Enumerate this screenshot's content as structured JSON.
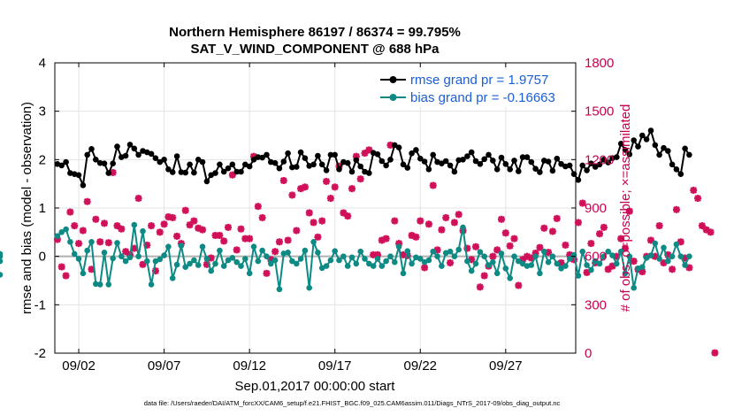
{
  "chart_data": {
    "type": "line",
    "title_lines": [
      "Northern Hemisphere 86197 / 86374 = 99.795%",
      "SAT_V_WIND_COMPONENT @ 688 hPa"
    ],
    "xlabel": "Sep.01,2017 00:00:00 start",
    "ylabel": "rmse and bias (model - observation)",
    "ylabel_right": "# of obs: o=possible; ×=assimilated",
    "footnote": "data file: /Users/raeder/DAI/ATM_forcXX/CAM6_setup/f.e21.FHIST_BGC.f09_025.CAM6assim.011/Diags_NTrS_2017-09/obs_diag_output.nc",
    "xlim": [
      0.6,
      31.1
    ],
    "x_ticks": [
      {
        "value": 2,
        "label": "09/02"
      },
      {
        "value": 7,
        "label": "09/07"
      },
      {
        "value": 12,
        "label": "09/12"
      },
      {
        "value": 17,
        "label": "09/17"
      },
      {
        "value": 22,
        "label": "09/22"
      },
      {
        "value": 27,
        "label": "09/27"
      }
    ],
    "ylim": [
      -2,
      4
    ],
    "y_ticks": [
      "-2",
      "-1",
      "0",
      "1",
      "2",
      "3",
      "4"
    ],
    "y_ticks_values": [
      -2,
      -1,
      0,
      1,
      2,
      3,
      4
    ],
    "ylim_right": [
      0,
      1800
    ],
    "y_ticks_right": [
      "0",
      "300",
      "600",
      "900",
      "1200",
      "1500",
      "1800"
    ],
    "y_ticks_right_values": [
      0,
      300,
      600,
      900,
      1200,
      1500,
      1800
    ],
    "x_start": 0.75,
    "x_step": 0.25,
    "colors": {
      "rmse": "#000000",
      "bias": "#0d8a84",
      "obs": "#d1105a",
      "zero_line": "#b0b0b0",
      "legend_text": "#1a5fd6",
      "right_axis": "#c8004f"
    },
    "legend": [
      {
        "key": "rmse",
        "label": "rmse grand pr = 1.9757"
      },
      {
        "key": "bias",
        "label": "bias grand pr = -0.16663"
      }
    ],
    "series": [
      {
        "name": "rmse",
        "values": [
          1.91,
          1.88,
          1.95,
          1.72,
          1.7,
          1.68,
          1.47,
          2.1,
          2.22,
          2.0,
          1.93,
          1.92,
          1.72,
          1.92,
          2.27,
          2.05,
          2.08,
          2.31,
          2.23,
          2.1,
          2.18,
          2.15,
          2.12,
          2.03,
          1.95,
          2.0,
          1.8,
          1.74,
          2.07,
          1.74,
          1.73,
          1.9,
          1.73,
          2.0,
          1.95,
          1.55,
          1.68,
          1.72,
          1.9,
          1.75,
          1.82,
          1.9,
          1.75,
          1.75,
          1.9,
          1.86,
          2.0,
          2.05,
          2.04,
          2.1,
          1.95,
          1.93,
          1.82,
          1.96,
          2.13,
          1.84,
          1.85,
          2.15,
          2.03,
          1.87,
          1.9,
          2.08,
          1.9,
          1.78,
          2.1,
          2.1,
          1.8,
          1.95,
          1.93,
          1.75,
          1.99,
          1.86,
          1.75,
          1.72,
          2.14,
          2.11,
          1.97,
          1.88,
          2.0,
          2.3,
          2.25,
          1.9,
          1.83,
          2.13,
          2.2,
          2.02,
          1.96,
          1.8,
          2.1,
          1.95,
          1.92,
          1.97,
          1.88,
          1.75,
          1.99,
          2.0,
          2.07,
          2.15,
          1.97,
          1.91,
          2.01,
          2.1,
          1.98,
          1.8,
          2.04,
          1.91,
          1.8,
          1.98,
          1.76,
          2.05,
          2.05,
          1.95,
          1.81,
          1.74,
          1.98,
          1.96,
          1.77,
          2.02,
          1.91,
          1.86,
          1.88,
          1.7,
          1.58,
          1.88,
          1.78,
          1.92,
          1.85,
          1.9,
          2.0,
          1.94,
          2.03,
          2.05,
          2.33,
          2.2,
          2.11,
          2.4,
          2.27,
          2.5,
          2.42,
          2.6,
          2.3,
          2.1,
          2.24,
          2.18,
          1.9,
          1.8,
          1.7,
          2.23,
          2.1
        ]
      },
      {
        "name": "bias",
        "values": [
          0.42,
          0.5,
          0.56,
          0.3,
          0.05,
          -0.05,
          -0.35,
          0.12,
          0.3,
          -0.57,
          -0.58,
          0.08,
          -0.58,
          -0.04,
          0.28,
          0.0,
          -0.1,
          -0.02,
          0.65,
          0.0,
          0.52,
          -0.1,
          -0.58,
          -0.1,
          -0.06,
          0.02,
          0.2,
          -0.45,
          -0.17,
          0.22,
          -0.22,
          -0.15,
          -0.08,
          -0.18,
          0.2,
          -0.05,
          -0.3,
          -0.15,
          0.12,
          -0.2,
          -0.08,
          -0.03,
          -0.12,
          -0.2,
          -0.05,
          -0.35,
          0.2,
          -0.1,
          0.12,
          0.0,
          -0.15,
          -0.08,
          -0.68,
          0.06,
          0.08,
          -0.1,
          -0.15,
          -0.05,
          0.12,
          -0.65,
          0.3,
          0.08,
          -0.24,
          -0.2,
          -0.08,
          0.11,
          -0.08,
          0.0,
          -0.2,
          -0.02,
          -0.15,
          0.1,
          -0.05,
          -0.15,
          -0.2,
          -0.05,
          -0.2,
          -0.1,
          0.0,
          -0.12,
          0.2,
          -0.35,
          0.11,
          -0.15,
          -0.02,
          -0.05,
          -0.12,
          -0.08,
          0.1,
          0.0,
          -0.2,
          0.07,
          0.1,
          0.0,
          0.14,
          0.6,
          -0.1,
          -0.3,
          -0.15,
          0.09,
          0.0,
          -0.18,
          -0.12,
          -0.35,
          0.06,
          -0.25,
          -0.45,
          0.0,
          -0.1,
          -0.15,
          -0.2,
          -0.18,
          0.0,
          -0.35,
          0.1,
          -0.12,
          0.0,
          -0.15,
          -0.25,
          -0.2,
          -0.05,
          0.03,
          -0.4,
          0.1,
          -0.18,
          -0.28,
          -0.1,
          -0.15,
          0.0,
          0.1,
          0.02,
          -0.15,
          0.1,
          -0.35,
          0.0,
          -0.65,
          -0.25,
          -0.22,
          -0.03,
          0.02,
          0.27,
          -0.05,
          0.18,
          -0.1,
          0.0,
          0.25,
          0.0,
          -0.18,
          0.0,
          -0.1,
          0.05,
          0.0,
          -0.38
        ]
      },
      {
        "name": "obs",
        "values": [
          705,
          535,
          480,
          875,
          790,
          680,
          760,
          940,
          520,
          830,
          690,
          805,
          685,
          1120,
          790,
          770,
          630,
          610,
          650,
          960,
          550,
          670,
          790,
          510,
          750,
          800,
          845,
          840,
          725,
          680,
          885,
          795,
          820,
          775,
          765,
          550,
          590,
          730,
          730,
          695,
          780,
          1105,
          640,
          770,
          710,
          710,
          1220,
          910,
          840,
          495,
          580,
          630,
          690,
          1070,
          700,
          980,
          760,
          1020,
          1030,
          870,
          810,
          720,
          820,
          1065,
          960,
          1030,
          1160,
          870,
          850,
          1020,
          1220,
          1080,
          1240,
          1260,
          610,
          610,
          700,
          710,
          1290,
          820,
          680,
          610,
          605,
          730,
          720,
          820,
          530,
          800,
          1040,
          640,
          765,
          840,
          560,
          810,
          860,
          760,
          650,
          580,
          660,
          410,
          480,
          540,
          600,
          640,
          830,
          745,
          665,
          710,
          420,
          580,
          600,
          590,
          620,
          655,
          775,
          625,
          755,
          835,
          560,
          670,
          610,
          580,
          810,
          930,
          500,
          680,
          560,
          740,
          780,
          520,
          540,
          600,
          710,
          650,
          880,
          570,
          520,
          505,
          600,
          700,
          600,
          790,
          560,
          610,
          520,
          890,
          690,
          590,
          530,
          1010,
          960,
          790,
          765,
          750,
          2
        ]
      }
    ]
  }
}
